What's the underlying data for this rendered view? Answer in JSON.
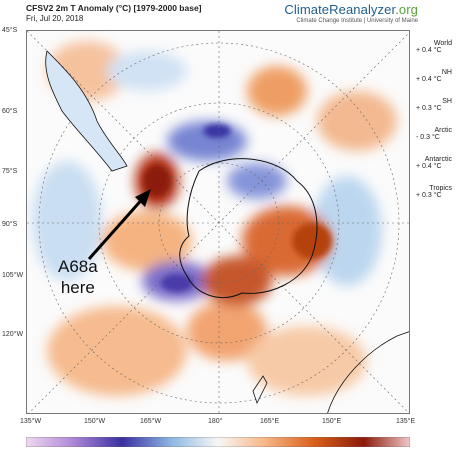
{
  "header": {
    "title": "CFSV2 2m T Anomaly (°C) [1979-2000 base]",
    "date": "Fri, Jul 20, 2018",
    "brand_main": "ClimateReanalyzer",
    "brand_suffix": ".org",
    "brand_sub": "Climate Change Institute | University of Maine"
  },
  "latitude_labels": [
    "45°S",
    "60°S",
    "75°S",
    "90°S",
    "105°W",
    "120°W"
  ],
  "longitude_labels": [
    "135°W",
    "150°W",
    "165°W",
    "180°",
    "165°E",
    "150°E",
    "135°E"
  ],
  "stats": [
    {
      "label": "World",
      "value": "+ 0.4 °C"
    },
    {
      "label": "NH",
      "value": "+ 0.4 °C"
    },
    {
      "label": "SH",
      "value": "+ 0.3 °C"
    },
    {
      "label": "Arctic",
      "value": "- 0.3 °C"
    },
    {
      "label": "Antarctic",
      "value": "+ 0.4 °C"
    },
    {
      "label": "Tropics",
      "value": "+ 0.3 °C"
    }
  ],
  "annotation": {
    "line1": "A68a",
    "line2": "here"
  },
  "colors": {
    "warm": "#d9601a",
    "hot": "#8b1a0a",
    "cold": "#3a2fa0",
    "cool": "#8fb8e3",
    "land": "#000000"
  }
}
